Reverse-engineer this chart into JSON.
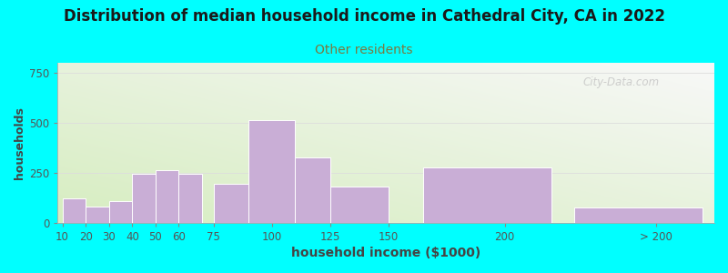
{
  "title": "Distribution of median household income in Cathedral City, CA in 2022",
  "subtitle": "Other residents",
  "xlabel": "household income ($1000)",
  "ylabel": "households",
  "background_color": "#00FFFF",
  "plot_bg_top_left": "#d6edc0",
  "plot_bg_bottom_right": "#f8f8f8",
  "bar_color": "#c9aed6",
  "bar_edgecolor": "#ffffff",
  "title_fontsize": 12,
  "subtitle_fontsize": 10,
  "subtitle_color": "#7a7a40",
  "xlabel_fontsize": 10,
  "ylabel_fontsize": 9,
  "tick_label_fontsize": 8.5,
  "tick_color": "#555555",
  "values": [
    120,
    80,
    110,
    245,
    265,
    245,
    195,
    515,
    325,
    180,
    275,
    75
  ],
  "x_lefts": [
    10,
    20,
    30,
    40,
    50,
    60,
    75,
    90,
    110,
    125,
    165,
    230
  ],
  "bar_widths": [
    10,
    10,
    10,
    10,
    10,
    10,
    15,
    20,
    15,
    25,
    55,
    55
  ],
  "xtick_positions": [
    10,
    20,
    30,
    40,
    50,
    60,
    75,
    100,
    125,
    150,
    200,
    265
  ],
  "xtick_labels": [
    "10",
    "20",
    "30",
    "40",
    "50",
    "60",
    "75",
    "100",
    "125",
    "150",
    "200",
    "> 200"
  ],
  "xlim": [
    8,
    290
  ],
  "ylim": [
    0,
    800
  ],
  "yticks": [
    0,
    250,
    500,
    750
  ],
  "watermark": "City-Data.com"
}
